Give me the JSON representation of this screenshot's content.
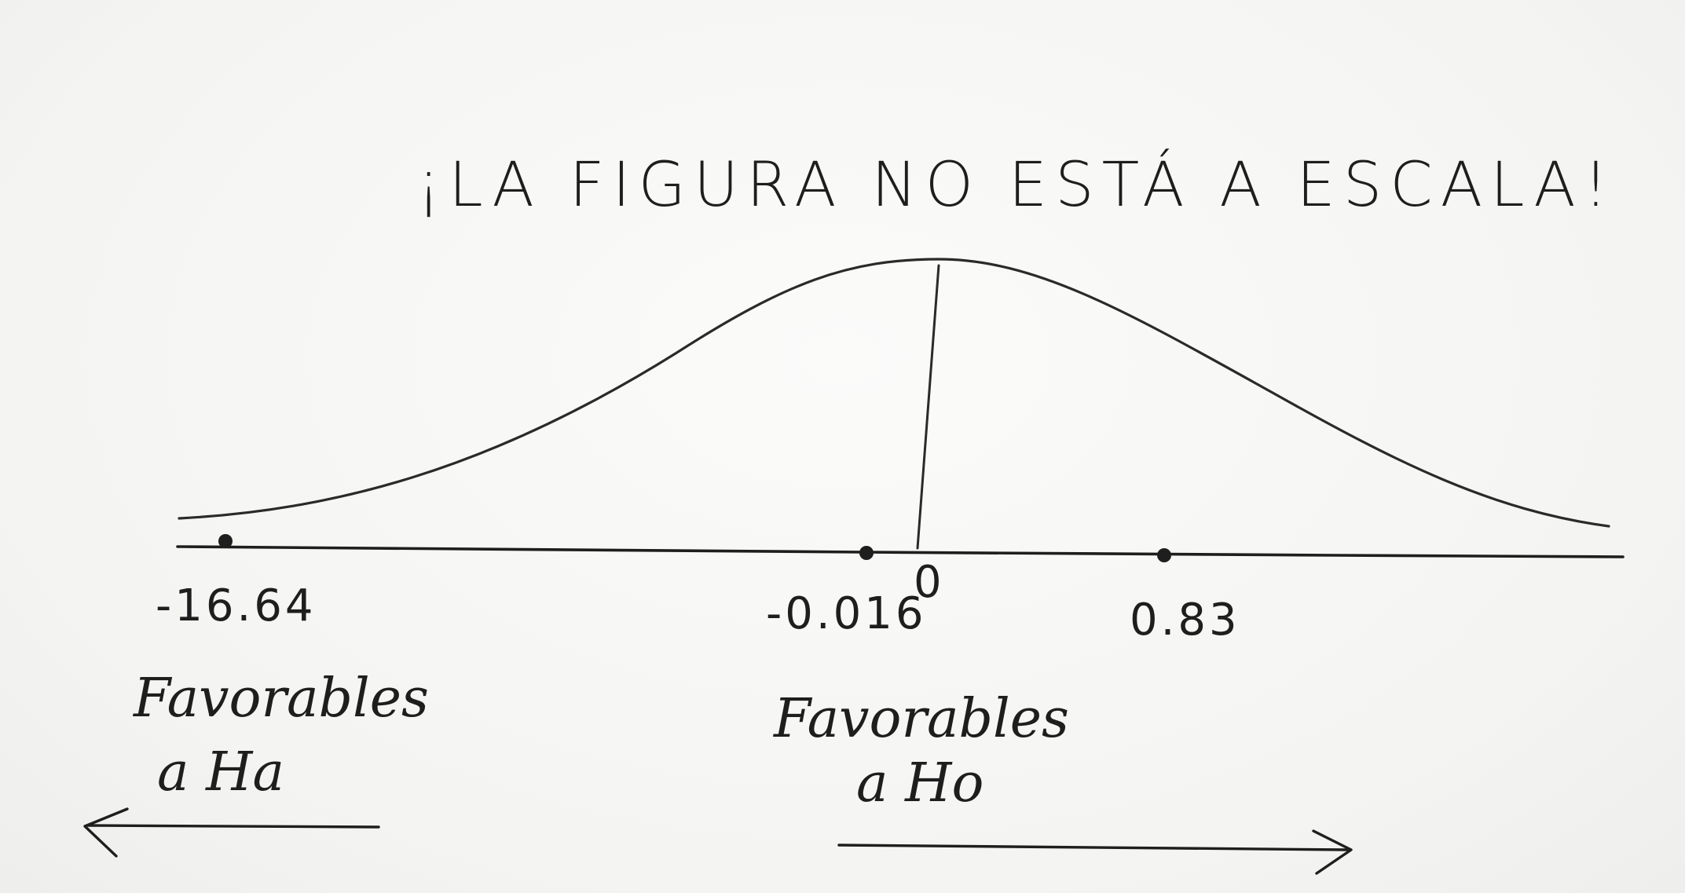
{
  "title": "¡LA FIGURA NO ESTÁ A ESCALA!",
  "axis": {
    "center_label": "0",
    "points": [
      {
        "value": "-16.64",
        "label": "-16.64"
      },
      {
        "value": "-0.016",
        "label": "-0.016"
      },
      {
        "value": "0.83",
        "label": "0.83"
      }
    ]
  },
  "regions": {
    "left": {
      "line1": "Favorables",
      "line2": "a Ha",
      "arrow_direction": "left"
    },
    "right": {
      "line1": "Favorables",
      "line2": "a Ho",
      "arrow_direction": "right"
    }
  },
  "colors": {
    "ink": "#1e1e1e",
    "paper": "#f7f7f6"
  }
}
